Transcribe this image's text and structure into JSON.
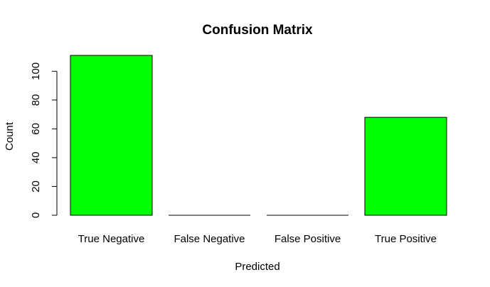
{
  "chart_data": {
    "type": "bar",
    "title": "Confusion Matrix",
    "xlabel": "Predicted",
    "ylabel": "Count",
    "categories": [
      "True Negative",
      "False Negative",
      "False Positive",
      "True Positive"
    ],
    "values": [
      111,
      0,
      0,
      68
    ],
    "ylim": [
      0,
      111
    ],
    "yticks": [
      0,
      20,
      40,
      60,
      80,
      100
    ],
    "bar_color": "#00ff00",
    "bar_border_color": "#000000",
    "grid": false
  }
}
